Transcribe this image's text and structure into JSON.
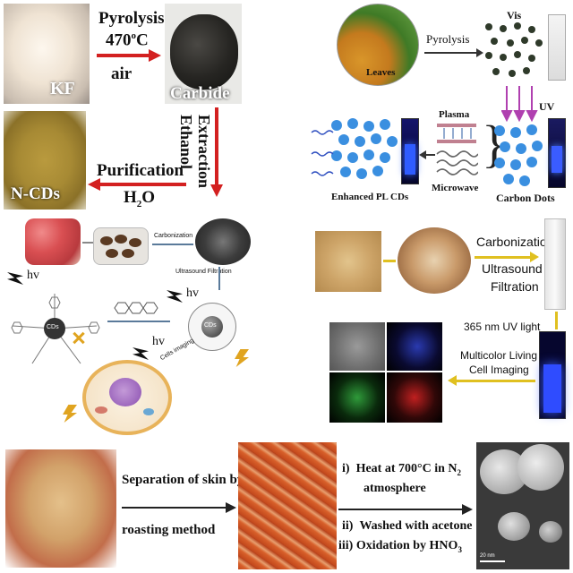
{
  "panel_a": {
    "kf": "KF",
    "step1": [
      "Pyrolysis",
      "470",
      "o",
      "C",
      "air"
    ],
    "carbide": "Carbide",
    "step2": [
      "Extraction",
      "Ethanol"
    ],
    "ncds": "N-CDs",
    "step3": [
      "Purification",
      "H",
      "2",
      "O"
    ]
  },
  "panel_b": {
    "leaves": "Leaves",
    "pyrolysis": "Pyrolysis",
    "vis": "Vis",
    "uv": "UV",
    "plasma": "Plasma",
    "microwave": "Microwave",
    "enhanced": "Enhanced PL CDs",
    "carbon_dots": "Carbon Dots"
  },
  "panel_c": {
    "carbonization": "Carbonization",
    "ultrasound_filtration": "Ultrasound  Filtration",
    "hv": "hv",
    "cds": "CDs",
    "cells_imaging": "Cells imaging"
  },
  "panel_d": {
    "carbonization": "Carbonization",
    "ultrasound": "Ultrasound",
    "filtration": "Filtration",
    "uv365": "365 nm UV light",
    "multicolor": [
      "Multicolor Living",
      "Cell Imaging"
    ]
  },
  "panel_e": {
    "separation": [
      "Separation of skin by",
      "roasting method"
    ],
    "step_i": [
      "i)",
      "Heat at 700°C in N",
      "2",
      "atmosphere"
    ],
    "step_ii": [
      "ii)",
      "Washed with acetone"
    ],
    "step_iii": [
      "iii)",
      "Oxidation by HNO",
      "3"
    ],
    "scale": "20 nm"
  },
  "colors": {
    "red_arrow": "#d32020",
    "orange_arrow": "#e0a420",
    "blue_dot": "#3a8fe0",
    "dark_dot": "#2f3a2a"
  }
}
